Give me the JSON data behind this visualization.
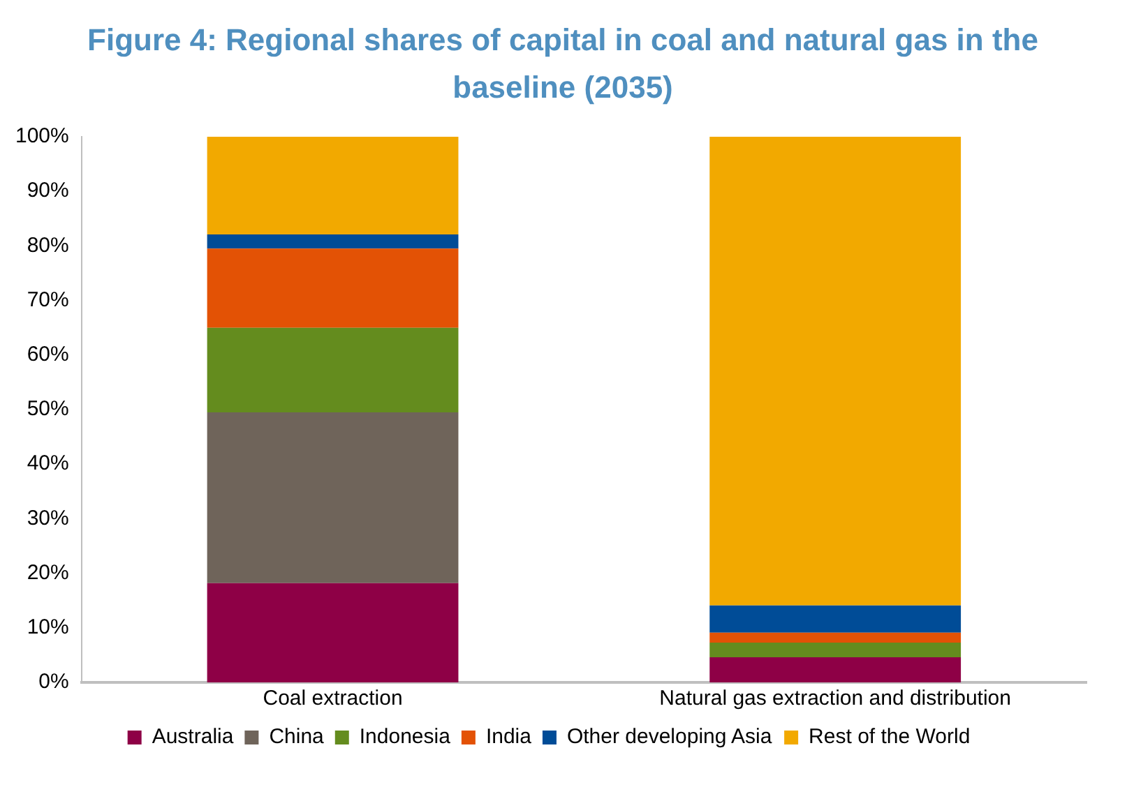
{
  "chart_data": {
    "type": "bar",
    "title": "Figure 4: Regional shares of capital in coal and natural gas in the baseline (2035)",
    "categories": [
      "Coal extraction",
      "Natural gas extraction and distribution"
    ],
    "stacked": true,
    "series": [
      {
        "name": "Australia",
        "color": "#8e0046",
        "values": [
          18.2,
          4.6
        ]
      },
      {
        "name": "China",
        "color": "#6f645a",
        "values": [
          31.3,
          0
        ]
      },
      {
        "name": "Indonesia",
        "color": "#648c1e",
        "values": [
          15.5,
          2.7
        ]
      },
      {
        "name": "India",
        "color": "#e35205",
        "values": [
          14.5,
          1.8
        ]
      },
      {
        "name": "Other developing Asia",
        "color": "#004c97",
        "values": [
          2.6,
          5.0
        ]
      },
      {
        "name": "Rest of the World",
        "color": "#f2a900",
        "values": [
          17.9,
          85.9
        ]
      }
    ],
    "ylim": [
      0,
      100
    ],
    "yticks": [
      {
        "value": 0,
        "label": "0%"
      },
      {
        "value": 10,
        "label": "10%"
      },
      {
        "value": 20,
        "label": "20%"
      },
      {
        "value": 30,
        "label": "30%"
      },
      {
        "value": 40,
        "label": "40%"
      },
      {
        "value": 50,
        "label": "50%"
      },
      {
        "value": 60,
        "label": "60%"
      },
      {
        "value": 70,
        "label": "70%"
      },
      {
        "value": 80,
        "label": "80%"
      },
      {
        "value": 90,
        "label": "90%"
      },
      {
        "value": 100,
        "label": "100%"
      }
    ],
    "grid": false,
    "legend": "bottom"
  }
}
